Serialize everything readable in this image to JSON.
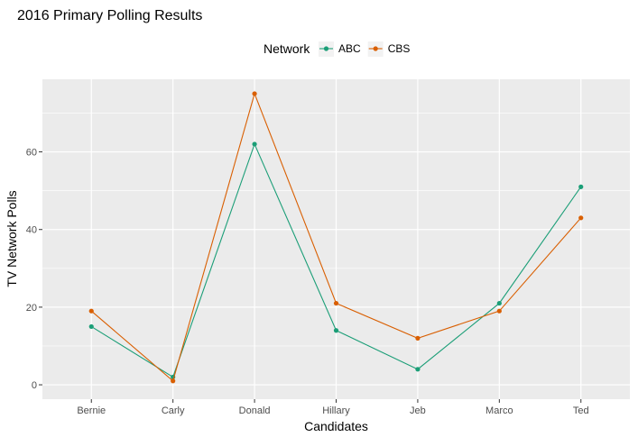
{
  "chart_data": {
    "type": "line",
    "title": "2016 Primary Polling Results",
    "xlabel": "Candidates",
    "ylabel": "TV Network Polls",
    "categories": [
      "Bernie",
      "Carly",
      "Donald",
      "Hillary",
      "Jeb",
      "Marco",
      "Ted"
    ],
    "series": [
      {
        "name": "ABC",
        "color": "#1b9e77",
        "values": [
          15,
          2,
          62,
          14,
          4,
          21,
          51
        ]
      },
      {
        "name": "CBS",
        "color": "#d95f02",
        "values": [
          19,
          1,
          75,
          21,
          12,
          19,
          43
        ]
      }
    ],
    "ylim": [
      -3.7,
      78.7
    ],
    "yticks": [
      0,
      20,
      40,
      60
    ],
    "grid": true,
    "legend": {
      "title": "Network",
      "position": "top"
    },
    "panel_background": "#ebebeb"
  }
}
